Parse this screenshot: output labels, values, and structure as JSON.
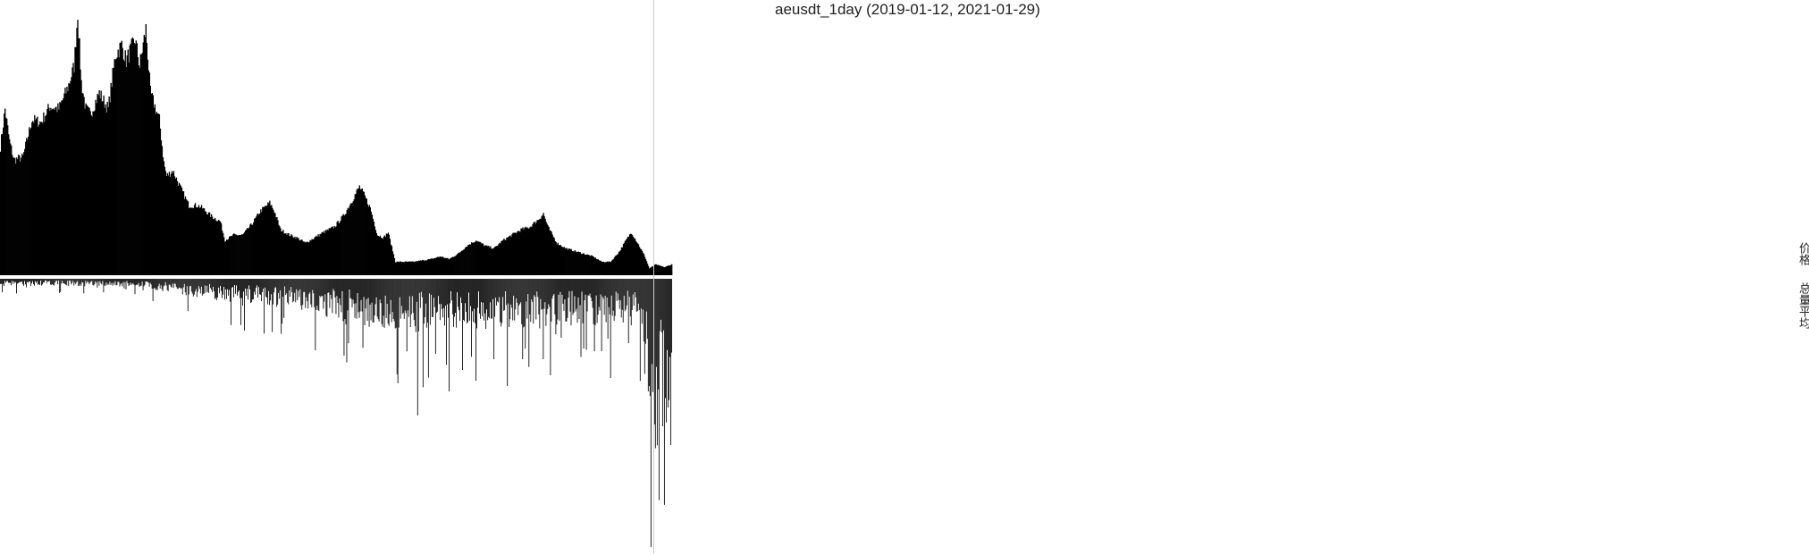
{
  "chart_data": {
    "type": "bar",
    "title": "aeusdt_1day (2019-01-12, 2021-01-29)",
    "x_range": [
      "2019-01-12",
      "2021-01-29"
    ],
    "series": [
      {
        "name": "价格",
        "description": "upper panel, filled black bars/area, one per day",
        "keyframes": [
          [
            0,
            0.48
          ],
          [
            5,
            0.62
          ],
          [
            10,
            0.5
          ],
          [
            15,
            0.43
          ],
          [
            25,
            0.44
          ],
          [
            35,
            0.58
          ],
          [
            45,
            0.57
          ],
          [
            55,
            0.63
          ],
          [
            65,
            0.62
          ],
          [
            75,
            0.7
          ],
          [
            82,
            0.78
          ],
          [
            86,
            0.98
          ],
          [
            90,
            0.72
          ],
          [
            95,
            0.62
          ],
          [
            100,
            0.6
          ],
          [
            110,
            0.68
          ],
          [
            120,
            0.62
          ],
          [
            128,
            0.82
          ],
          [
            135,
            0.86
          ],
          [
            140,
            0.8
          ],
          [
            150,
            0.88
          ],
          [
            155,
            0.78
          ],
          [
            162,
            0.92
          ],
          [
            167,
            0.68
          ],
          [
            177,
            0.58
          ],
          [
            182,
            0.42
          ],
          [
            185,
            0.37
          ],
          [
            192,
            0.39
          ],
          [
            200,
            0.33
          ],
          [
            210,
            0.26
          ],
          [
            220,
            0.26
          ],
          [
            225,
            0.25
          ],
          [
            235,
            0.22
          ],
          [
            245,
            0.2
          ],
          [
            250,
            0.13
          ],
          [
            260,
            0.15
          ],
          [
            270,
            0.15
          ],
          [
            280,
            0.19
          ],
          [
            290,
            0.24
          ],
          [
            300,
            0.27
          ],
          [
            305,
            0.24
          ],
          [
            312,
            0.17
          ],
          [
            322,
            0.15
          ],
          [
            330,
            0.14
          ],
          [
            340,
            0.12
          ],
          [
            350,
            0.14
          ],
          [
            360,
            0.16
          ],
          [
            372,
            0.18
          ],
          [
            382,
            0.22
          ],
          [
            392,
            0.28
          ],
          [
            400,
            0.33
          ],
          [
            405,
            0.3
          ],
          [
            412,
            0.25
          ],
          [
            420,
            0.15
          ],
          [
            427,
            0.14
          ],
          [
            432,
            0.16
          ],
          [
            440,
            0.05
          ],
          [
            450,
            0.05
          ],
          [
            460,
            0.05
          ],
          [
            470,
            0.055
          ],
          [
            480,
            0.06
          ],
          [
            490,
            0.07
          ],
          [
            500,
            0.06
          ],
          [
            510,
            0.08
          ],
          [
            520,
            0.11
          ],
          [
            530,
            0.13
          ],
          [
            540,
            0.11
          ],
          [
            550,
            0.1
          ],
          [
            560,
            0.13
          ],
          [
            570,
            0.15
          ],
          [
            580,
            0.17
          ],
          [
            590,
            0.18
          ],
          [
            600,
            0.21
          ],
          [
            605,
            0.23
          ],
          [
            610,
            0.18
          ],
          [
            620,
            0.12
          ],
          [
            630,
            0.1
          ],
          [
            640,
            0.09
          ],
          [
            650,
            0.08
          ],
          [
            660,
            0.07
          ],
          [
            670,
            0.05
          ],
          [
            680,
            0.05
          ],
          [
            690,
            0.09
          ],
          [
            697,
            0.13
          ],
          [
            703,
            0.16
          ],
          [
            710,
            0.12
          ],
          [
            718,
            0.07
          ],
          [
            723,
            0.025
          ],
          [
            730,
            0.04
          ],
          [
            740,
            0.03
          ],
          [
            748,
            0.04
          ]
        ]
      },
      {
        "name": "总量平均",
        "description": "lower panel, downward black bars, one per day",
        "keyframes": [
          [
            0,
            0.02
          ],
          [
            50,
            0.018
          ],
          [
            100,
            0.02
          ],
          [
            150,
            0.02
          ],
          [
            200,
            0.04
          ],
          [
            250,
            0.06
          ],
          [
            300,
            0.07
          ],
          [
            350,
            0.09
          ],
          [
            380,
            0.11
          ],
          [
            420,
            0.13
          ],
          [
            450,
            0.14
          ],
          [
            500,
            0.13
          ],
          [
            550,
            0.13
          ],
          [
            600,
            0.13
          ],
          [
            650,
            0.12
          ],
          [
            700,
            0.12
          ],
          [
            715,
            0.13
          ],
          [
            722,
            0.4
          ],
          [
            728,
            0.55
          ],
          [
            735,
            0.42
          ],
          [
            742,
            0.45
          ],
          [
            748,
            0.5
          ]
        ],
        "spikes": [
          [
            270,
            0.1
          ],
          [
            385,
            0.17
          ],
          [
            465,
            0.51
          ],
          [
            485,
            0.28
          ],
          [
            500,
            0.42
          ],
          [
            515,
            0.34
          ],
          [
            530,
            0.38
          ],
          [
            550,
            0.3
          ],
          [
            565,
            0.4
          ],
          [
            585,
            0.26
          ],
          [
            605,
            0.3
          ],
          [
            625,
            0.22
          ],
          [
            650,
            0.26
          ],
          [
            670,
            0.27
          ],
          [
            680,
            0.37
          ],
          [
            700,
            0.24
          ],
          [
            725,
            1.0
          ],
          [
            738,
            0.55
          ],
          [
            747,
            0.62
          ]
        ]
      }
    ],
    "grid": false,
    "legend": "none"
  },
  "labels": {
    "title": "aeusdt_1day (2019-01-12, 2021-01-29)",
    "price": "价格",
    "volume": "总量平均"
  },
  "colors": {
    "bars": "#000000",
    "background": "#ffffff",
    "divider": "#cccccc",
    "text": "#222222"
  }
}
